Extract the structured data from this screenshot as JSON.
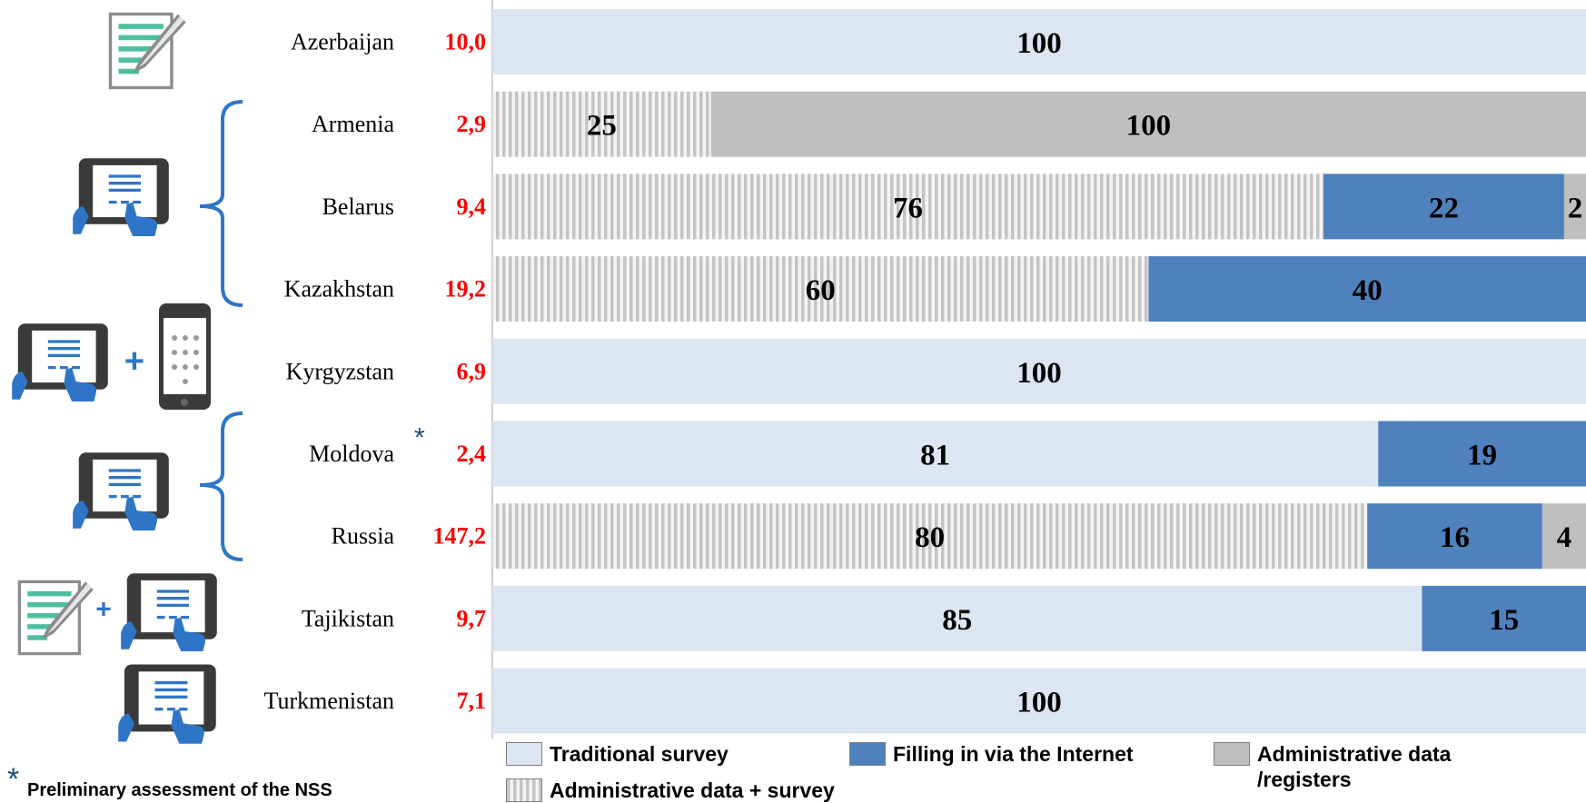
{
  "chart_data": {
    "type": "stacked-bar",
    "categories": [
      "Azerbaijan",
      "Armenia",
      "Belarus",
      "Kazakhstan",
      "Kyrgyzstan",
      "Moldova",
      "Russia",
      "Tajikistan",
      "Turkmenistan"
    ],
    "population": [
      "10,0",
      "2,9",
      "9,4",
      "19,2",
      "6,9",
      "2,4",
      "147,2",
      "9,7",
      "7,1"
    ],
    "annotation": "*",
    "footnote": "Preliminary assessment of the NSS",
    "footnote_mark": "*",
    "series": [
      {
        "name": "Traditional survey",
        "color": "#dce6f2",
        "values": [
          100,
          null,
          null,
          null,
          100,
          81,
          null,
          85,
          100
        ]
      },
      {
        "name": "Filling in via the Internet",
        "color": "#4f81bd",
        "values": [
          null,
          null,
          22,
          40,
          null,
          19,
          16,
          15,
          null
        ]
      },
      {
        "name": "Administrative data /registers",
        "color": "#bfbfbf",
        "values": [
          null,
          100,
          2,
          null,
          null,
          null,
          4,
          null,
          null
        ]
      },
      {
        "name": "Administrative data + survey",
        "color": "striped",
        "values": [
          null,
          25,
          76,
          60,
          null,
          null,
          80,
          null,
          null
        ]
      }
    ]
  }
}
